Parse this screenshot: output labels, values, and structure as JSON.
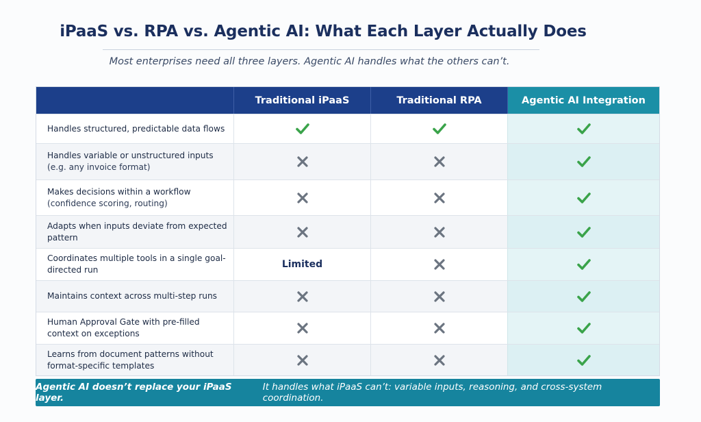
{
  "header": {
    "title": "iPaaS vs. RPA vs. Agentic AI: What Each Layer Actually Does",
    "subtitle": "Most enterprises need all three layers. Agentic AI handles what the others can’t."
  },
  "table": {
    "columns": [
      "",
      "Traditional iPaaS",
      "Traditional RPA",
      "Agentic AI Integration"
    ],
    "rows": [
      {
        "label": "Handles structured, predictable data flows",
        "note": "",
        "ipaas": "check",
        "rpa": "check",
        "agentic": "check"
      },
      {
        "label": "Handles variable or unstructured inputs",
        "note": "(e.g. any invoice format)",
        "ipaas": "cross",
        "rpa": "cross",
        "agentic": "check"
      },
      {
        "label": "Makes decisions within a workflow",
        "note": "(confidence scoring, routing)",
        "ipaas": "cross",
        "rpa": "cross",
        "agentic": "check"
      },
      {
        "label": "Adapts when inputs deviate from expected pattern",
        "note": "",
        "ipaas": "cross",
        "rpa": "cross",
        "agentic": "check"
      },
      {
        "label": "Coordinates multiple tools in a single goal-directed run",
        "note": "",
        "ipaas": "Limited",
        "rpa": "cross",
        "agentic": "check"
      },
      {
        "label": "Maintains context across multi-step runs",
        "note": "",
        "ipaas": "cross",
        "rpa": "cross",
        "agentic": "check"
      },
      {
        "label": "Human Approval Gate with pre-filled context on exceptions",
        "note": "",
        "ipaas": "cross",
        "rpa": "cross",
        "agentic": "check"
      },
      {
        "label": "Learns from document patterns without format-specific templates",
        "note": "",
        "ipaas": "cross",
        "rpa": "cross",
        "agentic": "check"
      }
    ]
  },
  "banner": {
    "lead": "Agentic AI doesn’t replace your iPaaS layer.",
    "rest": "It handles what iPaaS can’t: variable inputs, reasoning, and cross-system coordination."
  },
  "colors": {
    "header_navy": "#1c3f8a",
    "header_teal": "#1b8fa6",
    "check_green": "#3aa34a",
    "cross_gray": "#6b7480",
    "banner_teal": "#16849e"
  }
}
